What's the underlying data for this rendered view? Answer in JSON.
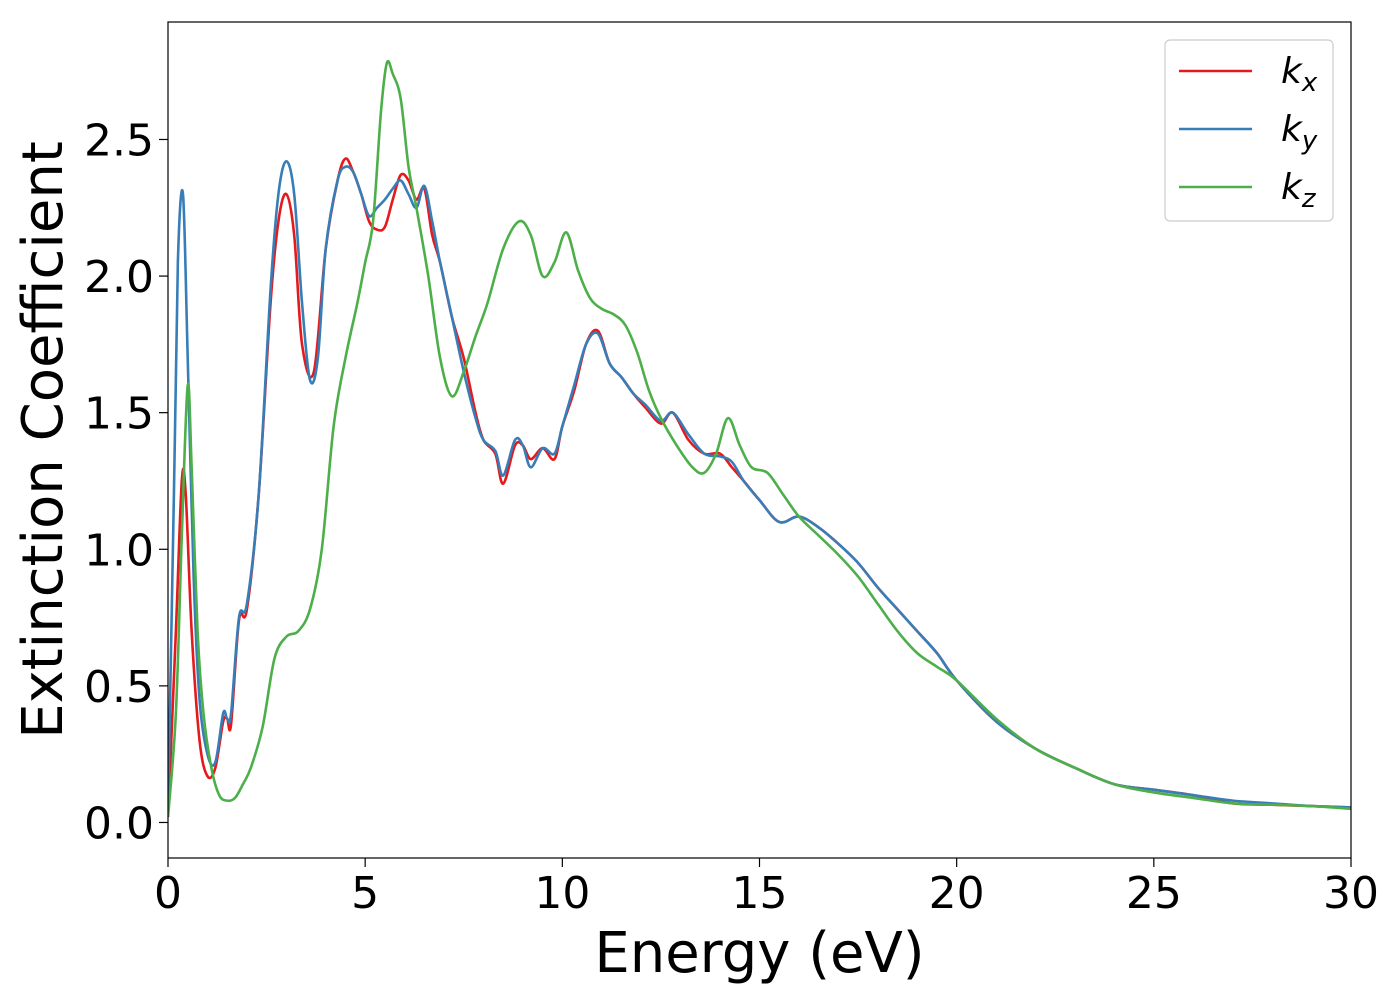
{
  "chart_data": {
    "type": "line",
    "title": "",
    "xlabel": "Energy (eV)",
    "ylabel": "Extinction Coefficient",
    "xlim": [
      0,
      30
    ],
    "ylim": [
      -0.13,
      2.93
    ],
    "xticks": [
      0,
      5,
      10,
      15,
      20,
      25,
      30
    ],
    "xtick_labels": [
      "0",
      "5",
      "10",
      "15",
      "20",
      "25",
      "30"
    ],
    "yticks": [
      0.0,
      0.5,
      1.0,
      1.5,
      2.0,
      2.5
    ],
    "ytick_labels": [
      "0.0",
      "0.5",
      "1.0",
      "1.5",
      "2.0",
      "2.5"
    ],
    "grid": false,
    "legend": "top-right",
    "series": [
      {
        "name": "k",
        "subscript": "x",
        "color": "#e41a1c",
        "x": [
          0,
          0.2,
          0.35,
          0.45,
          0.6,
          0.8,
          1.0,
          1.2,
          1.4,
          1.5,
          1.6,
          1.8,
          2.0,
          2.3,
          2.6,
          2.8,
          3.0,
          3.2,
          3.4,
          3.7,
          4.0,
          4.3,
          4.5,
          4.7,
          4.9,
          5.1,
          5.3,
          5.5,
          5.7,
          5.9,
          6.1,
          6.3,
          6.5,
          6.7,
          6.9,
          7.2,
          7.5,
          7.8,
          8.0,
          8.3,
          8.5,
          8.8,
          9.0,
          9.2,
          9.5,
          9.8,
          10.0,
          10.3,
          10.6,
          10.9,
          11.2,
          11.5,
          11.8,
          12.1,
          12.5,
          12.8,
          13.2,
          13.6,
          14.0,
          14.3,
          14.6,
          15.0,
          15.5,
          16.0,
          16.5,
          17.0,
          17.5,
          18.0,
          18.5,
          19.0,
          19.5,
          20.0,
          21.0,
          22.0,
          23.0,
          24.0,
          25.0,
          26.0,
          27.0,
          28.0,
          29.0,
          30.0
        ],
        "values": [
          0.02,
          0.7,
          1.25,
          1.2,
          0.7,
          0.3,
          0.17,
          0.2,
          0.37,
          0.38,
          0.36,
          0.74,
          0.78,
          1.2,
          1.9,
          2.2,
          2.3,
          2.15,
          1.75,
          1.65,
          2.1,
          2.35,
          2.43,
          2.38,
          2.3,
          2.2,
          2.17,
          2.18,
          2.28,
          2.37,
          2.35,
          2.28,
          2.32,
          2.15,
          2.05,
          1.85,
          1.7,
          1.5,
          1.4,
          1.35,
          1.24,
          1.38,
          1.38,
          1.33,
          1.37,
          1.33,
          1.45,
          1.58,
          1.75,
          1.8,
          1.68,
          1.63,
          1.57,
          1.52,
          1.46,
          1.5,
          1.4,
          1.35,
          1.35,
          1.3,
          1.25,
          1.18,
          1.1,
          1.12,
          1.08,
          1.02,
          0.95,
          0.86,
          0.78,
          0.7,
          0.62,
          0.52,
          0.37,
          0.27,
          0.2,
          0.14,
          0.12,
          0.1,
          0.07,
          0.065,
          0.06,
          0.055
        ]
      },
      {
        "name": "k",
        "subscript": "y",
        "color": "#377eb8",
        "x": [
          0,
          0.15,
          0.25,
          0.38,
          0.5,
          0.65,
          0.8,
          1.0,
          1.2,
          1.4,
          1.5,
          1.6,
          1.8,
          2.0,
          2.3,
          2.6,
          2.8,
          3.0,
          3.2,
          3.4,
          3.6,
          3.8,
          4.0,
          4.3,
          4.5,
          4.7,
          4.9,
          5.1,
          5.3,
          5.5,
          5.7,
          5.9,
          6.1,
          6.3,
          6.5,
          6.7,
          6.9,
          7.2,
          7.5,
          7.8,
          8.0,
          8.3,
          8.5,
          8.8,
          9.0,
          9.2,
          9.5,
          9.8,
          10.0,
          10.3,
          10.6,
          10.9,
          11.2,
          11.5,
          11.8,
          12.1,
          12.5,
          12.8,
          13.2,
          13.6,
          14.0,
          14.3,
          14.6,
          15.0,
          15.5,
          16.0,
          16.5,
          17.0,
          17.5,
          18.0,
          18.5,
          19.0,
          19.5,
          20.0,
          21.0,
          22.0,
          23.0,
          24.0,
          25.0,
          26.0,
          27.0,
          28.0,
          29.0,
          30.0
        ],
        "values": [
          0.05,
          1.2,
          2.05,
          2.3,
          1.7,
          0.9,
          0.45,
          0.25,
          0.22,
          0.4,
          0.38,
          0.4,
          0.75,
          0.8,
          1.2,
          1.95,
          2.3,
          2.42,
          2.3,
          1.9,
          1.62,
          1.7,
          2.1,
          2.35,
          2.4,
          2.38,
          2.3,
          2.22,
          2.25,
          2.28,
          2.32,
          2.35,
          2.3,
          2.25,
          2.33,
          2.2,
          2.05,
          1.85,
          1.65,
          1.48,
          1.4,
          1.36,
          1.27,
          1.4,
          1.38,
          1.3,
          1.37,
          1.35,
          1.45,
          1.6,
          1.75,
          1.79,
          1.68,
          1.63,
          1.57,
          1.53,
          1.47,
          1.5,
          1.42,
          1.35,
          1.34,
          1.32,
          1.25,
          1.18,
          1.1,
          1.12,
          1.08,
          1.02,
          0.95,
          0.86,
          0.78,
          0.7,
          0.62,
          0.52,
          0.37,
          0.27,
          0.2,
          0.14,
          0.12,
          0.1,
          0.08,
          0.07,
          0.06,
          0.055
        ]
      },
      {
        "name": "k",
        "subscript": "z",
        "color": "#4daf4a",
        "x": [
          0,
          0.2,
          0.35,
          0.5,
          0.6,
          0.75,
          0.9,
          1.1,
          1.3,
          1.5,
          1.7,
          1.9,
          2.1,
          2.4,
          2.7,
          3.0,
          3.3,
          3.6,
          3.9,
          4.2,
          4.5,
          4.8,
          5.0,
          5.2,
          5.4,
          5.55,
          5.7,
          5.9,
          6.1,
          6.3,
          6.6,
          6.9,
          7.2,
          7.5,
          7.8,
          8.1,
          8.5,
          8.9,
          9.2,
          9.5,
          9.8,
          10.1,
          10.4,
          10.7,
          11.0,
          11.3,
          11.6,
          11.9,
          12.2,
          12.5,
          12.9,
          13.3,
          13.6,
          13.9,
          14.2,
          14.5,
          14.8,
          15.2,
          15.6,
          16.0,
          16.5,
          17.0,
          17.5,
          18.0,
          18.5,
          19.0,
          19.5,
          20.0,
          21.0,
          22.0,
          23.0,
          24.0,
          25.0,
          26.0,
          27.0,
          28.0,
          29.0,
          30.0
        ],
        "values": [
          0.02,
          0.4,
          1.05,
          1.6,
          1.3,
          0.7,
          0.4,
          0.2,
          0.1,
          0.08,
          0.09,
          0.14,
          0.2,
          0.35,
          0.6,
          0.68,
          0.7,
          0.78,
          1.0,
          1.45,
          1.7,
          1.9,
          2.05,
          2.2,
          2.6,
          2.78,
          2.74,
          2.65,
          2.4,
          2.25,
          2.0,
          1.7,
          1.56,
          1.65,
          1.78,
          1.9,
          2.1,
          2.2,
          2.15,
          2.0,
          2.05,
          2.16,
          2.02,
          1.92,
          1.88,
          1.86,
          1.82,
          1.72,
          1.58,
          1.48,
          1.38,
          1.3,
          1.28,
          1.35,
          1.48,
          1.38,
          1.3,
          1.28,
          1.2,
          1.12,
          1.05,
          0.98,
          0.9,
          0.8,
          0.7,
          0.62,
          0.57,
          0.52,
          0.38,
          0.27,
          0.2,
          0.14,
          0.11,
          0.09,
          0.07,
          0.065,
          0.06,
          0.05
        ]
      }
    ]
  }
}
